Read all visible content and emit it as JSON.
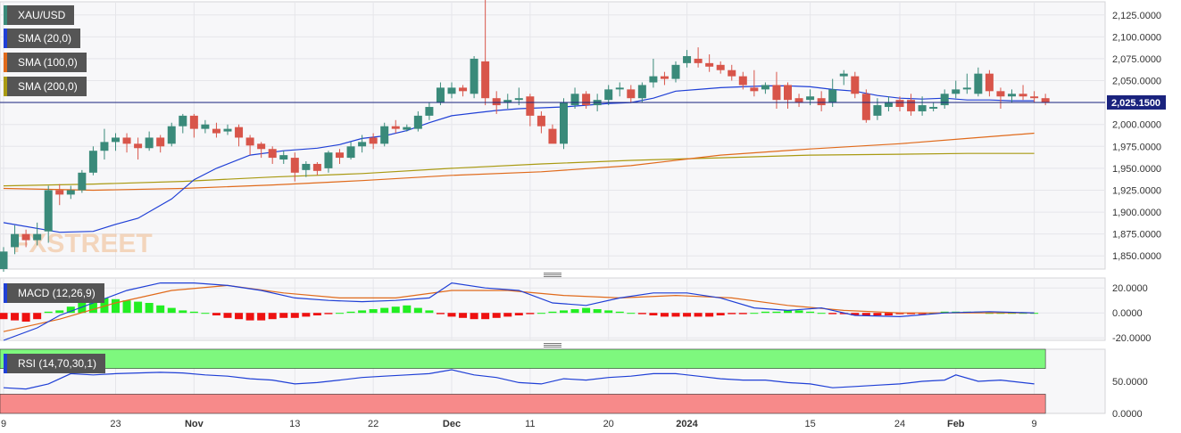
{
  "watermark": "FXSTREET",
  "chart_data": {
    "type": "candlestick",
    "symbol": "XAU/USD",
    "colors": {
      "up": "#3a8a7a",
      "down": "#d8554a",
      "sma20": "#1f3fd6",
      "sma100": "#e06a1b",
      "sma200": "#a99a12",
      "macd": "#1f3fd6",
      "signal": "#e06a1b",
      "hist_pos": "#22ee22",
      "hist_neg": "#ee1111",
      "rsi": "#1f3fd6",
      "rsi_over": "#7ef87e",
      "rsi_under": "#f78a8a",
      "price_line": "#1a237e"
    },
    "current_price": "2,025.1500",
    "current_value": 2025.15,
    "price_axis": {
      "range": [
        1835,
        2140
      ],
      "ticks": [
        "2,125.0000",
        "2,100.0000",
        "2,075.0000",
        "2,050.0000",
        "2,025.0000",
        "2,000.0000",
        "1,975.0000",
        "1,950.0000",
        "1,925.0000",
        "1,900.0000",
        "1,875.0000",
        "1,850.0000"
      ]
    },
    "x_axis_labels": [
      {
        "label": "9",
        "bar": 0
      },
      {
        "label": "23",
        "bar": 10
      },
      {
        "label": "Nov",
        "bar": 17
      },
      {
        "label": "13",
        "bar": 26
      },
      {
        "label": "22",
        "bar": 33
      },
      {
        "label": "Dec",
        "bar": 40
      },
      {
        "label": "11",
        "bar": 47
      },
      {
        "label": "20",
        "bar": 54
      },
      {
        "label": "2024",
        "bar": 61
      },
      {
        "label": "15",
        "bar": 72
      },
      {
        "label": "24",
        "bar": 80
      },
      {
        "label": "Feb",
        "bar": 85
      },
      {
        "label": "9",
        "bar": 92
      }
    ],
    "candles": [
      [
        1835,
        1855,
        1832,
        1860
      ],
      [
        1860,
        1875,
        1852,
        1885
      ],
      [
        1875,
        1868,
        1860,
        1880
      ],
      [
        1868,
        1875,
        1862,
        1888
      ],
      [
        1878,
        1925,
        1865,
        1930
      ],
      [
        1925,
        1920,
        1908,
        1932
      ],
      [
        1920,
        1925,
        1915,
        1930
      ],
      [
        1925,
        1945,
        1922,
        1948
      ],
      [
        1945,
        1970,
        1942,
        1975
      ],
      [
        1970,
        1980,
        1960,
        1995
      ],
      [
        1980,
        1985,
        1970,
        1990
      ],
      [
        1985,
        1978,
        1968,
        1990
      ],
      [
        1978,
        1973,
        1960,
        1985
      ],
      [
        1973,
        1985,
        1970,
        1992
      ],
      [
        1985,
        1975,
        1968,
        1988
      ],
      [
        1978,
        1998,
        1975,
        2002
      ],
      [
        1998,
        2010,
        1990,
        2012
      ],
      [
        2010,
        1995,
        1985,
        2012
      ],
      [
        1995,
        2000,
        1990,
        2005
      ],
      [
        1995,
        1990,
        1985,
        2002
      ],
      [
        1992,
        1995,
        1988,
        2000
      ],
      [
        1997,
        1985,
        1975,
        2000
      ],
      [
        1985,
        1976,
        1965,
        1988
      ],
      [
        1978,
        1972,
        1962,
        1980
      ],
      [
        1972,
        1962,
        1955,
        1975
      ],
      [
        1960,
        1965,
        1955,
        1970
      ],
      [
        1962,
        1945,
        1935,
        1968
      ],
      [
        1948,
        1955,
        1940,
        1958
      ],
      [
        1955,
        1947,
        1942,
        1957
      ],
      [
        1950,
        1968,
        1945,
        1970
      ],
      [
        1968,
        1962,
        1955,
        1972
      ],
      [
        1962,
        1975,
        1960,
        1980
      ],
      [
        1975,
        1980,
        1968,
        1988
      ],
      [
        1985,
        1978,
        1972,
        1990
      ],
      [
        1978,
        1998,
        1975,
        2002
      ],
      [
        1998,
        1995,
        1990,
        2005
      ],
      [
        1994,
        1997,
        1992,
        2000
      ],
      [
        1995,
        2010,
        1992,
        2015
      ],
      [
        2010,
        2020,
        2005,
        2025
      ],
      [
        2025,
        2042,
        2022,
        2048
      ],
      [
        2035,
        2042,
        2030,
        2048
      ],
      [
        2042,
        2038,
        2032,
        2045
      ],
      [
        2035,
        2075,
        2030,
        2078
      ],
      [
        2072,
        2030,
        2022,
        2142
      ],
      [
        2030,
        2022,
        2012,
        2038
      ],
      [
        2025,
        2028,
        2018,
        2035
      ],
      [
        2028,
        2030,
        2022,
        2042
      ],
      [
        2032,
        2010,
        1998,
        2035
      ],
      [
        2010,
        1998,
        1990,
        2015
      ],
      [
        1995,
        1978,
        1980,
        2000
      ],
      [
        1978,
        2025,
        1972,
        2030
      ],
      [
        2022,
        2035,
        2018,
        2042
      ],
      [
        2035,
        2022,
        2018,
        2038
      ],
      [
        2022,
        2028,
        2015,
        2035
      ],
      [
        2028,
        2040,
        2022,
        2045
      ],
      [
        2040,
        2042,
        2032,
        2048
      ],
      [
        2040,
        2030,
        2025,
        2045
      ],
      [
        2030,
        2045,
        2025,
        2048
      ],
      [
        2048,
        2055,
        2042,
        2075
      ],
      [
        2055,
        2052,
        2045,
        2060
      ],
      [
        2052,
        2068,
        2048,
        2072
      ],
      [
        2070,
        2078,
        2065,
        2085
      ],
      [
        2075,
        2070,
        2065,
        2088
      ],
      [
        2070,
        2066,
        2060,
        2080
      ],
      [
        2068,
        2062,
        2058,
        2072
      ],
      [
        2062,
        2055,
        2050,
        2068
      ],
      [
        2055,
        2045,
        2040,
        2060
      ],
      [
        2042,
        2038,
        2032,
        2062
      ],
      [
        2040,
        2045,
        2035,
        2048
      ],
      [
        2045,
        2028,
        2018,
        2060
      ],
      [
        2045,
        2028,
        2018,
        2048
      ],
      [
        2030,
        2025,
        2020,
        2035
      ],
      [
        2028,
        2032,
        2022,
        2040
      ],
      [
        2030,
        2022,
        2015,
        2038
      ],
      [
        2025,
        2040,
        2020,
        2052
      ],
      [
        2055,
        2058,
        2045,
        2062
      ],
      [
        2055,
        2035,
        2030,
        2060
      ],
      [
        2035,
        2005,
        2002,
        2040
      ],
      [
        2010,
        2022,
        2005,
        2030
      ],
      [
        2020,
        2025,
        2015,
        2032
      ],
      [
        2028,
        2020,
        2015,
        2032
      ],
      [
        2028,
        2015,
        2010,
        2035
      ],
      [
        2015,
        2022,
        2010,
        2032
      ],
      [
        2018,
        2020,
        2015,
        2025
      ],
      [
        2022,
        2035,
        2018,
        2040
      ],
      [
        2035,
        2040,
        2030,
        2050
      ],
      [
        2040,
        2042,
        2035,
        2058
      ],
      [
        2035,
        2058,
        2032,
        2065
      ],
      [
        2058,
        2038,
        2032,
        2062
      ],
      [
        2038,
        2032,
        2018,
        2042
      ],
      [
        2032,
        2035,
        2025,
        2040
      ],
      [
        2035,
        2032,
        2028,
        2045
      ],
      [
        2032,
        2030,
        2025,
        2038
      ],
      [
        2030,
        2025,
        2022,
        2035
      ]
    ],
    "sma20_points": [
      [
        0,
        1888
      ],
      [
        5,
        1877
      ],
      [
        8,
        1878
      ],
      [
        10,
        1886
      ],
      [
        12,
        1893
      ],
      [
        15,
        1915
      ],
      [
        17,
        1937
      ],
      [
        19,
        1950
      ],
      [
        22,
        1965
      ],
      [
        25,
        1970
      ],
      [
        28,
        1973
      ],
      [
        30,
        1977
      ],
      [
        32,
        1984
      ],
      [
        34,
        1987
      ],
      [
        36,
        1993
      ],
      [
        38,
        2002
      ],
      [
        40,
        2010
      ],
      [
        42,
        2013
      ],
      [
        44,
        2016
      ],
      [
        46,
        2018
      ],
      [
        48,
        2019
      ],
      [
        50,
        2020
      ],
      [
        52,
        2022
      ],
      [
        54,
        2024
      ],
      [
        56,
        2025
      ],
      [
        58,
        2030
      ],
      [
        60,
        2038
      ],
      [
        62,
        2040
      ],
      [
        64,
        2042
      ],
      [
        66,
        2043
      ],
      [
        68,
        2044
      ],
      [
        70,
        2044
      ],
      [
        72,
        2043
      ],
      [
        74,
        2040
      ],
      [
        76,
        2038
      ],
      [
        78,
        2033
      ],
      [
        80,
        2030
      ],
      [
        82,
        2029
      ],
      [
        84,
        2030
      ],
      [
        86,
        2028
      ],
      [
        88,
        2028
      ],
      [
        90,
        2027
      ],
      [
        92,
        2027
      ]
    ],
    "sma100_points": [
      [
        0,
        1927
      ],
      [
        8,
        1925
      ],
      [
        16,
        1927
      ],
      [
        24,
        1931
      ],
      [
        32,
        1936
      ],
      [
        40,
        1942
      ],
      [
        48,
        1946
      ],
      [
        56,
        1953
      ],
      [
        64,
        1965
      ],
      [
        72,
        1972
      ],
      [
        80,
        1978
      ],
      [
        86,
        1984
      ],
      [
        92,
        1990
      ]
    ],
    "sma200_points": [
      [
        0,
        1930
      ],
      [
        8,
        1932
      ],
      [
        16,
        1935
      ],
      [
        24,
        1940
      ],
      [
        32,
        1944
      ],
      [
        40,
        1950
      ],
      [
        48,
        1955
      ],
      [
        56,
        1959
      ],
      [
        64,
        1962
      ],
      [
        72,
        1965
      ],
      [
        80,
        1966
      ],
      [
        86,
        1967
      ],
      [
        92,
        1967
      ]
    ],
    "macd": {
      "label": "MACD (12,26,9)",
      "axis_ticks": [
        "20.0000",
        "0.0000",
        "-20.0000"
      ],
      "range": [
        -22,
        28
      ],
      "macd_points": [
        [
          0,
          -22
        ],
        [
          3,
          -12
        ],
        [
          5,
          -2
        ],
        [
          8,
          8
        ],
        [
          11,
          18
        ],
        [
          14,
          24
        ],
        [
          17,
          24
        ],
        [
          20,
          22
        ],
        [
          23,
          18
        ],
        [
          26,
          12
        ],
        [
          29,
          10
        ],
        [
          32,
          9
        ],
        [
          35,
          10
        ],
        [
          38,
          12
        ],
        [
          40,
          24
        ],
        [
          43,
          20
        ],
        [
          46,
          18
        ],
        [
          49,
          8
        ],
        [
          52,
          6
        ],
        [
          55,
          12
        ],
        [
          58,
          16
        ],
        [
          61,
          16
        ],
        [
          64,
          12
        ],
        [
          67,
          4
        ],
        [
          70,
          2
        ],
        [
          73,
          4
        ],
        [
          76,
          -2
        ],
        [
          80,
          -3
        ],
        [
          84,
          0
        ],
        [
          88,
          1
        ],
        [
          92,
          0
        ]
      ],
      "signal_points": [
        [
          0,
          -15
        ],
        [
          5,
          -5
        ],
        [
          10,
          8
        ],
        [
          15,
          18
        ],
        [
          20,
          22
        ],
        [
          25,
          16
        ],
        [
          30,
          12
        ],
        [
          35,
          12
        ],
        [
          40,
          18
        ],
        [
          45,
          18
        ],
        [
          50,
          14
        ],
        [
          55,
          12
        ],
        [
          60,
          14
        ],
        [
          65,
          12
        ],
        [
          70,
          6
        ],
        [
          75,
          2
        ],
        [
          80,
          0
        ],
        [
          85,
          0
        ],
        [
          92,
          0
        ]
      ],
      "histogram": [
        -5,
        -6,
        -7,
        -5,
        1,
        2,
        5,
        11,
        13,
        12,
        11,
        10,
        9,
        8,
        6,
        4,
        2,
        1,
        0,
        -2,
        -4,
        -5,
        -6,
        -6,
        -5,
        -4,
        -4,
        -3,
        -2,
        -1,
        0,
        1,
        2,
        3,
        4,
        5,
        6,
        4,
        2,
        -1,
        -3,
        -4,
        -5,
        -5,
        -4,
        -3,
        -2,
        -1,
        0,
        1,
        2,
        3,
        4,
        3,
        2,
        1,
        0,
        -1,
        -2,
        -3,
        -3,
        -3,
        -3,
        -3,
        -2,
        -1,
        -1,
        0,
        1,
        1,
        2,
        2,
        1,
        0,
        -1,
        -1,
        -2,
        -2,
        -2,
        -2,
        -1,
        -1,
        -1,
        0,
        1,
        1,
        1,
        1,
        0,
        0,
        0,
        0,
        0
      ]
    },
    "rsi": {
      "label": "RSI (14,70,30,1)",
      "axis_ticks": [
        "50.0000",
        "0.0000"
      ],
      "range": [
        0,
        100
      ],
      "over": [
        70,
        100
      ],
      "under": [
        0,
        30
      ],
      "points": [
        [
          0,
          40
        ],
        [
          2,
          38
        ],
        [
          4,
          46
        ],
        [
          6,
          62
        ],
        [
          8,
          60
        ],
        [
          10,
          62
        ],
        [
          12,
          63
        ],
        [
          14,
          64
        ],
        [
          16,
          63
        ],
        [
          18,
          60
        ],
        [
          20,
          58
        ],
        [
          22,
          54
        ],
        [
          24,
          52
        ],
        [
          26,
          46
        ],
        [
          28,
          48
        ],
        [
          30,
          52
        ],
        [
          32,
          56
        ],
        [
          34,
          58
        ],
        [
          36,
          60
        ],
        [
          38,
          62
        ],
        [
          40,
          68
        ],
        [
          42,
          60
        ],
        [
          44,
          56
        ],
        [
          46,
          48
        ],
        [
          48,
          46
        ],
        [
          50,
          54
        ],
        [
          52,
          52
        ],
        [
          54,
          56
        ],
        [
          56,
          58
        ],
        [
          58,
          62
        ],
        [
          60,
          62
        ],
        [
          62,
          58
        ],
        [
          64,
          54
        ],
        [
          66,
          52
        ],
        [
          68,
          52
        ],
        [
          70,
          48
        ],
        [
          72,
          46
        ],
        [
          74,
          40
        ],
        [
          76,
          42
        ],
        [
          78,
          44
        ],
        [
          80,
          46
        ],
        [
          82,
          50
        ],
        [
          84,
          52
        ],
        [
          85,
          60
        ],
        [
          87,
          50
        ],
        [
          89,
          52
        ],
        [
          92,
          46
        ]
      ]
    }
  }
}
